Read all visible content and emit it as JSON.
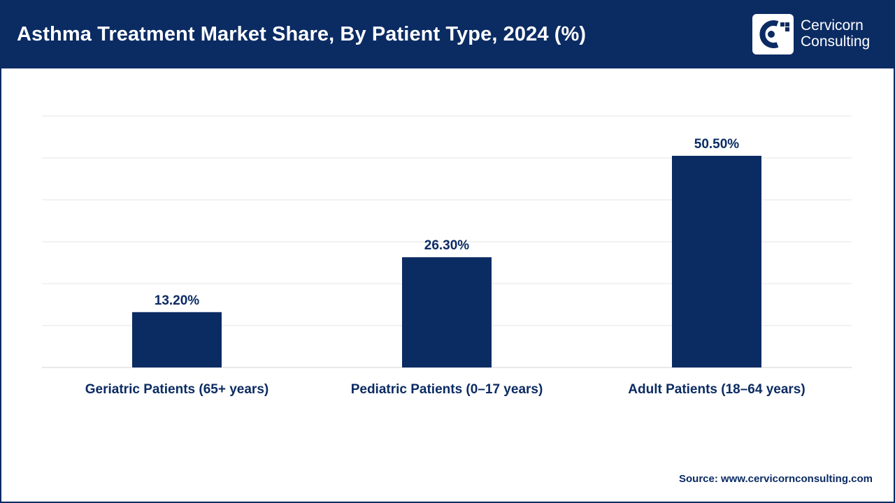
{
  "header": {
    "title": "Asthma Treatment Market Share, By Patient Type, 2024 (%)",
    "brand_line1": "Cervicorn",
    "brand_line2": "Consulting"
  },
  "source": "Source: www.cervicornconsulting.com",
  "colors": {
    "primary": "#0b2b63",
    "gridline": "#e6e6e6",
    "axis": "#d0d0d0",
    "background": "#ffffff"
  },
  "chart_data": {
    "type": "bar",
    "title": "Asthma Treatment Market Share, By Patient Type, 2024 (%)",
    "categories": [
      "Geriatric Patients (65+ years)",
      "Pediatric Patients (0–17 years)",
      "Adult Patients (18–64 years)"
    ],
    "values": [
      13.2,
      26.3,
      50.5
    ],
    "value_labels": [
      "13.20%",
      "26.30%",
      "50.50%"
    ],
    "xlabel": "",
    "ylabel": "",
    "ylim": [
      0,
      60
    ],
    "grid": true,
    "y_axis_visible": false,
    "legend": "none"
  }
}
